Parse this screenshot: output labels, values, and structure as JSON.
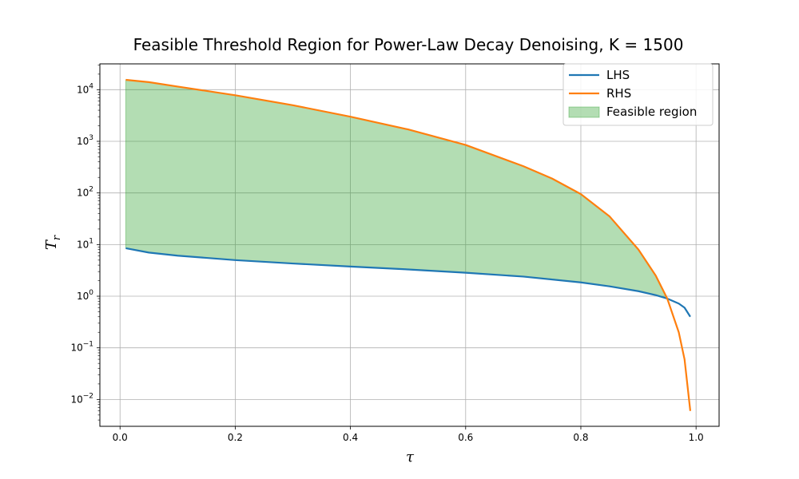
{
  "chart_data": {
    "type": "line",
    "title": "Feasible Threshold Region for Power-Law Decay Denoising, K = 1500",
    "xlabel": "τ",
    "ylabel_base": "T",
    "ylabel_sub": "r",
    "xlim": [
      -0.035,
      1.04
    ],
    "ylim_log10": [
      -2.52,
      4.5
    ],
    "yscale": "log",
    "grid": true,
    "x_ticks": [
      {
        "value": 0.0,
        "label": "0.0"
      },
      {
        "value": 0.2,
        "label": "0.2"
      },
      {
        "value": 0.4,
        "label": "0.4"
      },
      {
        "value": 0.6,
        "label": "0.6"
      },
      {
        "value": 0.8,
        "label": "0.8"
      },
      {
        "value": 1.0,
        "label": "1.0"
      }
    ],
    "y_ticks": [
      {
        "value": 0.01,
        "base": "10",
        "exp": "−2"
      },
      {
        "value": 0.1,
        "base": "10",
        "exp": "−1"
      },
      {
        "value": 1,
        "base": "10",
        "exp": "0"
      },
      {
        "value": 10,
        "base": "10",
        "exp": "1"
      },
      {
        "value": 100,
        "base": "10",
        "exp": "2"
      },
      {
        "value": 1000,
        "base": "10",
        "exp": "3"
      },
      {
        "value": 10000,
        "base": "10",
        "exp": "4"
      }
    ],
    "legend_position": "top-right",
    "series": [
      {
        "name": "LHS",
        "color": "#1f77b4",
        "x": [
          0.01,
          0.05,
          0.1,
          0.2,
          0.3,
          0.4,
          0.5,
          0.6,
          0.7,
          0.8,
          0.85,
          0.9,
          0.93,
          0.95,
          0.97,
          0.98,
          0.99
        ],
        "y": [
          8.5,
          7.0,
          6.1,
          5.0,
          4.3,
          3.75,
          3.3,
          2.85,
          2.4,
          1.85,
          1.55,
          1.25,
          1.05,
          0.9,
          0.72,
          0.6,
          0.4
        ]
      },
      {
        "name": "RHS",
        "color": "#ff7f0e",
        "x": [
          0.01,
          0.05,
          0.1,
          0.2,
          0.3,
          0.4,
          0.5,
          0.6,
          0.7,
          0.75,
          0.8,
          0.85,
          0.9,
          0.93,
          0.95,
          0.97,
          0.98,
          0.99
        ],
        "y": [
          15500,
          14000,
          11500,
          7800,
          5000,
          3000,
          1700,
          850,
          330,
          190,
          95,
          35,
          8,
          2.5,
          0.9,
          0.2,
          0.06,
          0.006
        ]
      }
    ],
    "fill": {
      "name": "Feasible region",
      "color": "#2ca02c",
      "opacity": 0.36,
      "x": [
        0.01,
        0.05,
        0.1,
        0.2,
        0.3,
        0.4,
        0.5,
        0.6,
        0.7,
        0.75,
        0.8,
        0.85,
        0.9,
        0.93,
        0.95
      ],
      "y_low": [
        8.5,
        7.0,
        6.1,
        5.0,
        4.3,
        3.75,
        3.3,
        2.85,
        2.4,
        2.15,
        1.85,
        1.55,
        1.25,
        1.05,
        0.9
      ],
      "y_high": [
        15500,
        14000,
        11500,
        7800,
        5000,
        3000,
        1700,
        850,
        330,
        190,
        95,
        35,
        8,
        2.5,
        0.9
      ]
    }
  }
}
